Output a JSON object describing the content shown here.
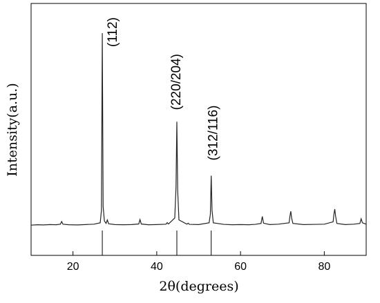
{
  "chart_data": {
    "type": "line",
    "xlabel": "2θ(degrees)",
    "ylabel": "Intensity(a.u.)",
    "x": [
      10,
      11.5,
      13,
      14.5,
      16,
      17.0,
      17.3,
      17.6,
      19,
      21,
      23,
      25,
      26.5,
      26.8,
      27.0,
      27.2,
      27.5,
      27.9,
      28.2,
      28.5,
      30,
      32,
      34,
      35.7,
      36.0,
      36.3,
      38,
      40,
      42.2,
      42.5,
      42.8,
      44.3,
      44.6,
      44.8,
      45.0,
      45.3,
      47.2,
      47.5,
      47.8,
      50,
      52.5,
      52.8,
      53.0,
      53.2,
      53.5,
      56,
      58,
      60,
      62,
      63.5,
      64.9,
      65.2,
      65.5,
      67,
      69,
      71.6,
      71.8,
      72.0,
      72.2,
      72.5,
      75,
      78,
      80,
      82.1,
      82.3,
      82.5,
      82.7,
      83.0,
      85,
      87,
      88.5,
      88.8,
      89.1,
      90
    ],
    "series": [
      {
        "color": "#222222",
        "values": [
          0.3,
          0.5,
          0.4,
          0.6,
          0.5,
          0.8,
          2.2,
          0.8,
          0.5,
          0.4,
          0.6,
          0.8,
          1.5,
          8,
          100,
          10,
          2.5,
          1.2,
          3,
          1,
          0.6,
          0.5,
          0.6,
          0.9,
          3.2,
          0.9,
          0.5,
          0.6,
          0.8,
          1.6,
          0.9,
          4,
          20,
          54,
          18,
          3,
          0.8,
          1.3,
          0.7,
          0.6,
          1.5,
          6,
          26,
          8,
          1.5,
          0.7,
          0.5,
          0.6,
          0.5,
          0.7,
          1.2,
          4.8,
          1.3,
          0.6,
          0.8,
          1.5,
          5,
          7.5,
          4,
          1.2,
          0.6,
          0.7,
          0.8,
          2,
          6,
          8.6,
          5,
          1.2,
          0.6,
          0.8,
          1.2,
          3.6,
          1.5,
          0.8
        ]
      }
    ],
    "reference_lines": [
      27.0,
      44.8,
      53.0
    ],
    "annotations": [
      "(112)",
      "(220/204)",
      "(312/116)"
    ],
    "xlim": [
      10,
      90
    ],
    "xticks": [
      20,
      40,
      60,
      80
    ],
    "ylim": [
      -15.4,
      115.4
    ]
  }
}
